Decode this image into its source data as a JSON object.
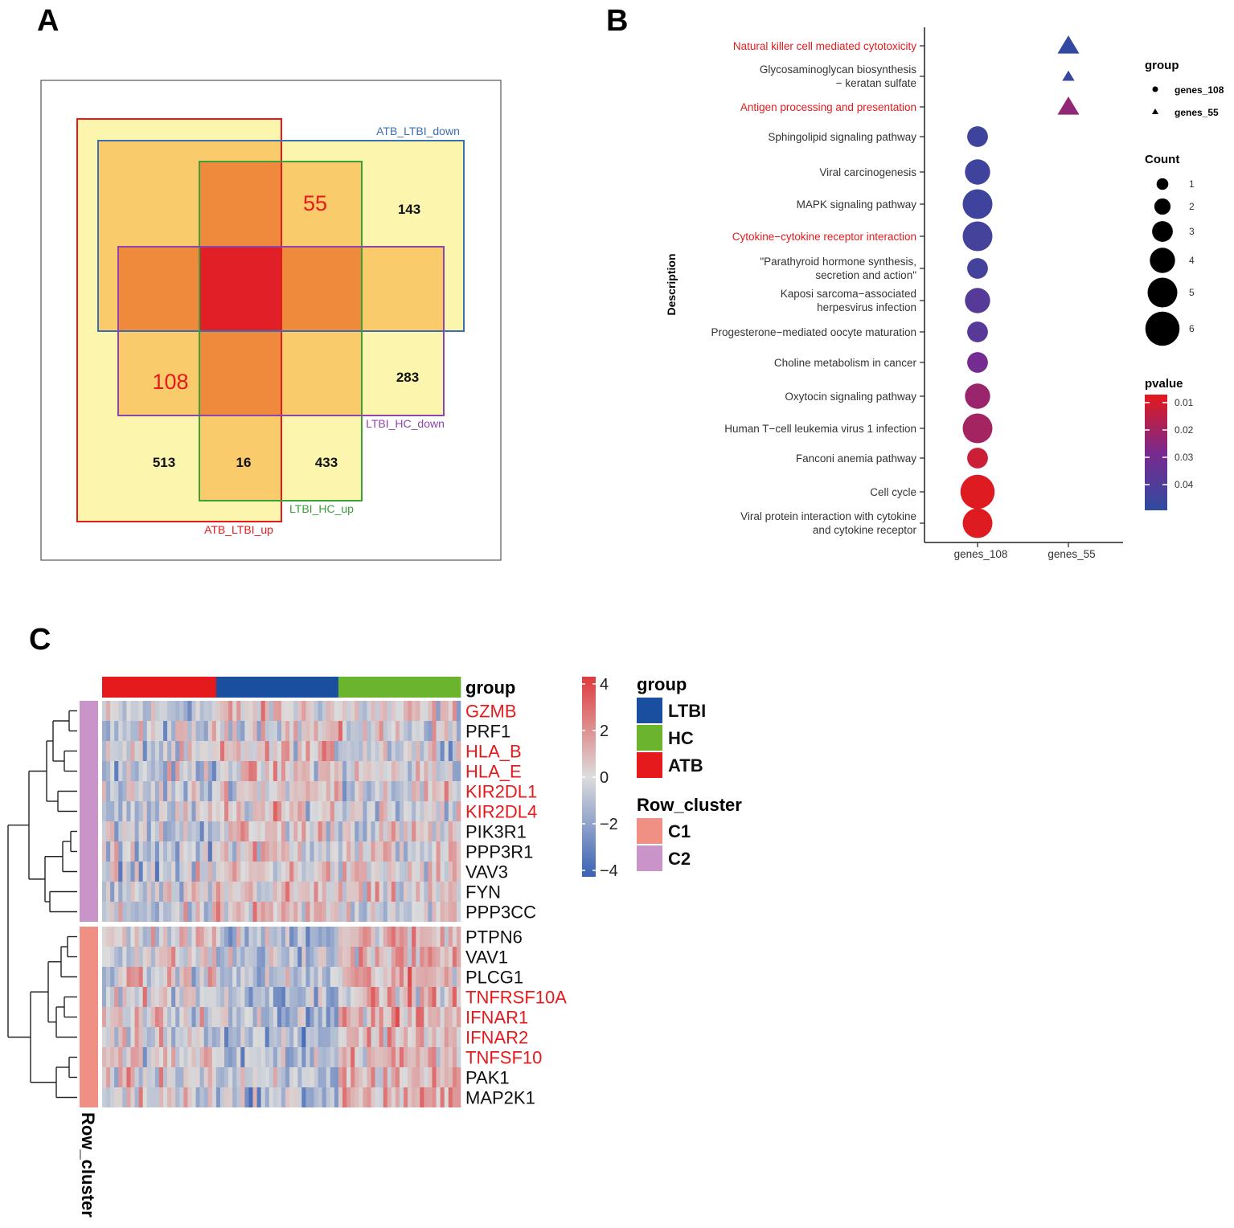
{
  "panels": {
    "a": "A",
    "b": "B",
    "c": "C"
  },
  "colors": {
    "red": "#e41a1c",
    "blue": "#1f4e9e",
    "green": "#6ab42e",
    "purple": "#7b3294",
    "yellow_light": "#fbf5ad",
    "orange_light": "#f9cb6a",
    "orange": "#ef8a3c",
    "core": "#e11f27",
    "c1": "#f08f84",
    "c2": "#c994c7"
  },
  "chart_data": [
    {
      "type": "venn",
      "panel": "A",
      "sets": [
        {
          "name": "ATB_LTBI_up",
          "color": "#e41a1c"
        },
        {
          "name": "ATB_LTBI_down",
          "color": "#3a6fb0"
        },
        {
          "name": "LTBI_HC_up",
          "color": "#3aa03a"
        },
        {
          "name": "LTBI_HC_down",
          "color": "#8e44ad"
        }
      ],
      "region_labels": [
        {
          "text": "55",
          "highlight": true
        },
        {
          "text": "143",
          "highlight": false
        },
        {
          "text": "108",
          "highlight": true
        },
        {
          "text": "283",
          "highlight": false
        },
        {
          "text": "513",
          "highlight": false
        },
        {
          "text": "16",
          "highlight": false
        },
        {
          "text": "433",
          "highlight": false
        }
      ]
    },
    {
      "type": "scatter",
      "panel": "B",
      "ylabel": "Description",
      "x_categories": [
        "genes_108",
        "genes_55"
      ],
      "terms": [
        {
          "label": [
            "Natural killer cell mediated cytotoxicity"
          ],
          "highlight": true,
          "group": "genes_55",
          "count": 3,
          "pvalue": 0.047
        },
        {
          "label": [
            "Glycosaminoglycan biosynthesis",
            "− keratan sulfate"
          ],
          "highlight": false,
          "group": "genes_55",
          "count": 1,
          "pvalue": 0.045
        },
        {
          "label": [
            "Antigen processing and presentation"
          ],
          "highlight": true,
          "group": "genes_55",
          "count": 3,
          "pvalue": 0.022
        },
        {
          "label": [
            "Sphingolipid signaling pathway"
          ],
          "highlight": false,
          "group": "genes_108",
          "count": 3,
          "pvalue": 0.043
        },
        {
          "label": [
            "Viral carcinogenesis"
          ],
          "highlight": false,
          "group": "genes_108",
          "count": 4,
          "pvalue": 0.043
        },
        {
          "label": [
            "MAPK signaling pathway"
          ],
          "highlight": false,
          "group": "genes_108",
          "count": 5,
          "pvalue": 0.043
        },
        {
          "label": [
            "Cytokine−cytokine receptor interaction"
          ],
          "highlight": true,
          "group": "genes_108",
          "count": 5,
          "pvalue": 0.042
        },
        {
          "label": [
            "\"Parathyroid hormone synthesis,",
            "secretion and action\""
          ],
          "highlight": false,
          "group": "genes_108",
          "count": 3,
          "pvalue": 0.042
        },
        {
          "label": [
            "Kaposi sarcoma−associated",
            "herpesvirus infection"
          ],
          "highlight": false,
          "group": "genes_108",
          "count": 4,
          "pvalue": 0.037
        },
        {
          "label": [
            "Progesterone−mediated oocyte maturation"
          ],
          "highlight": false,
          "group": "genes_108",
          "count": 3,
          "pvalue": 0.036
        },
        {
          "label": [
            "Choline metabolism in cancer"
          ],
          "highlight": false,
          "group": "genes_108",
          "count": 3,
          "pvalue": 0.028
        },
        {
          "label": [
            "Oxytocin signaling pathway"
          ],
          "highlight": false,
          "group": "genes_108",
          "count": 4,
          "pvalue": 0.02
        },
        {
          "label": [
            "Human T−cell leukemia virus 1 infection"
          ],
          "highlight": false,
          "group": "genes_108",
          "count": 5,
          "pvalue": 0.018
        },
        {
          "label": [
            "Fanconi anemia pathway"
          ],
          "highlight": false,
          "group": "genes_108",
          "count": 3,
          "pvalue": 0.01
        },
        {
          "label": [
            "Cell cycle"
          ],
          "highlight": false,
          "group": "genes_108",
          "count": 6,
          "pvalue": 0.006
        },
        {
          "label": [
            "Viral protein interaction with cytokine",
            "and cytokine receptor"
          ],
          "highlight": false,
          "group": "genes_108",
          "count": 5,
          "pvalue": 0.006
        }
      ],
      "legend_group": {
        "title": "group",
        "entries": [
          "genes_108",
          "genes_55"
        ]
      },
      "legend_count": {
        "title": "Count",
        "values": [
          1,
          2,
          3,
          4,
          5,
          6
        ]
      },
      "legend_pvalue": {
        "title": "pvalue",
        "ticks": [
          "0.01",
          "0.02",
          "0.03",
          "0.04"
        ],
        "range": [
          0.005,
          0.048
        ],
        "colors": [
          "#e31a1c",
          "#7a2a8f",
          "#2f4ba0"
        ]
      }
    },
    {
      "type": "heatmap",
      "panel": "C",
      "column_groups": [
        {
          "name": "ATB",
          "color": "#e41a1c",
          "n_samples": 28
        },
        {
          "name": "LTBI",
          "color": "#1a4fa0",
          "n_samples": 30
        },
        {
          "name": "HC",
          "color": "#6ab42e",
          "n_samples": 30
        }
      ],
      "annotation_title": "group",
      "row_annotation_title": "Row_cluster",
      "rows": [
        {
          "gene": "GZMB",
          "highlight": true,
          "cluster": "C2"
        },
        {
          "gene": "PRF1",
          "highlight": false,
          "cluster": "C2"
        },
        {
          "gene": "HLA_B",
          "highlight": true,
          "cluster": "C2"
        },
        {
          "gene": "HLA_E",
          "highlight": true,
          "cluster": "C2"
        },
        {
          "gene": "KIR2DL1",
          "highlight": true,
          "cluster": "C2"
        },
        {
          "gene": "KIR2DL4",
          "highlight": true,
          "cluster": "C2"
        },
        {
          "gene": "PIK3R1",
          "highlight": false,
          "cluster": "C2"
        },
        {
          "gene": "PPP3R1",
          "highlight": false,
          "cluster": "C2"
        },
        {
          "gene": "VAV3",
          "highlight": false,
          "cluster": "C2"
        },
        {
          "gene": "FYN",
          "highlight": false,
          "cluster": "C2"
        },
        {
          "gene": "PPP3CC",
          "highlight": false,
          "cluster": "C2"
        },
        {
          "gene": "PTPN6",
          "highlight": false,
          "cluster": "C1"
        },
        {
          "gene": "VAV1",
          "highlight": false,
          "cluster": "C1"
        },
        {
          "gene": "PLCG1",
          "highlight": false,
          "cluster": "C1"
        },
        {
          "gene": "TNFRSF10A",
          "highlight": true,
          "cluster": "C1"
        },
        {
          "gene": "IFNAR1",
          "highlight": true,
          "cluster": "C1"
        },
        {
          "gene": "IFNAR2",
          "highlight": true,
          "cluster": "C1"
        },
        {
          "gene": "TNFSF10",
          "highlight": true,
          "cluster": "C1"
        },
        {
          "gene": "PAK1",
          "highlight": false,
          "cluster": "C1"
        },
        {
          "gene": "MAP2K1",
          "highlight": false,
          "cluster": "C1"
        }
      ],
      "color_scale": {
        "ticks": [
          "4",
          "2",
          "0",
          "−2",
          "−4"
        ],
        "range": [
          -4,
          4
        ],
        "colors": [
          "#3a62b5",
          "#dcdcdc",
          "#e03a3c"
        ]
      },
      "legend_group": {
        "title": "group",
        "entries": [
          {
            "name": "LTBI",
            "color": "#1a4fa0"
          },
          {
            "name": "HC",
            "color": "#6ab42e"
          },
          {
            "name": "ATB",
            "color": "#e41a1c"
          }
        ]
      },
      "legend_cluster": {
        "title": "Row_cluster",
        "entries": [
          {
            "name": "C1",
            "color": "#f08f84"
          },
          {
            "name": "C2",
            "color": "#c994c7"
          }
        ]
      }
    }
  ]
}
